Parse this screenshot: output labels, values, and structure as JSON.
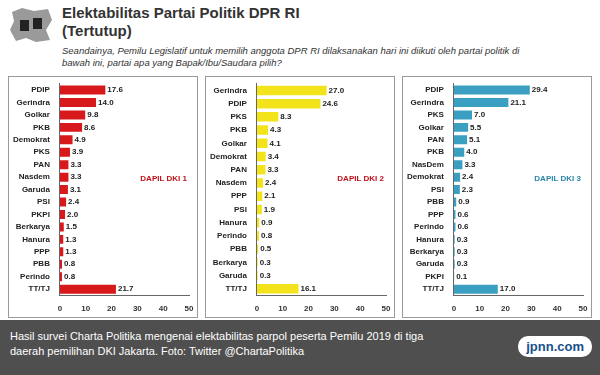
{
  "title": [
    "Elektabilitas Partai Politik DPR RI",
    "(Tertutup)"
  ],
  "question": "Seandainya, Pemilu Legislatif untuk memilih anggota DPR RI dilaksanakan hari ini diikuti oleh partai politik di bawah ini, partai apa yang Bapak/Ibu/Saudara pilih?",
  "caption": "Hasil survei Charta Politika mengenai elektabilitas parpol peserta Pemilu 2019 di tiga daerah pemilihan DKI Jakarta. Foto: Twitter @ChartaPolitika",
  "logo": "jpnn.com",
  "chart_data": [
    {
      "type": "bar",
      "orientation": "horizontal",
      "annotation": "DAPIL DKI 1",
      "color": "#d7191c",
      "categories": [
        "PDIP",
        "Gerindra",
        "Golkar",
        "PKB",
        "Demokrat",
        "PKS",
        "PAN",
        "Nasdem",
        "Garuda",
        "PSI",
        "PKPI",
        "Berkarya",
        "Hanura",
        "PPP",
        "PBB",
        "Perindo",
        "TT/TJ"
      ],
      "values": [
        17.6,
        14.0,
        9.8,
        8.6,
        4.9,
        3.9,
        3.3,
        3.3,
        3.1,
        2.4,
        2.0,
        1.5,
        1.3,
        1.3,
        0.8,
        0.8,
        21.7
      ],
      "value_labels": [
        "17.6",
        "14.0",
        "9.8",
        "8.6",
        "4.9",
        "3.9",
        "3.3",
        "3.3",
        "3.1",
        "2.4",
        "2.0",
        "1.5",
        "1.3",
        "1.3",
        "0.8",
        "0.8",
        "21.7"
      ],
      "data_labels": true,
      "grid": false,
      "xlim": [
        0,
        50
      ],
      "xticks": [
        0,
        10,
        20,
        30,
        40,
        50
      ]
    },
    {
      "type": "bar",
      "orientation": "horizontal",
      "annotation": "DAPIL DKI 2",
      "color": "#f2e31b",
      "categories": [
        "Gerindra",
        "PDIP",
        "PKS",
        "PKB",
        "Golkar",
        "Demokrat",
        "PAN",
        "Nasdem",
        "PPP",
        "PSI",
        "Hanura",
        "Perindo",
        "PBB",
        "Berkarya",
        "Garuda",
        "TT/TJ"
      ],
      "values": [
        27.0,
        24.6,
        8.3,
        4.3,
        4.1,
        3.4,
        3.3,
        2.4,
        2.1,
        1.9,
        0.9,
        0.8,
        0.5,
        0.3,
        0.3,
        16.1
      ],
      "value_labels": [
        "27.0",
        "24.6",
        "8.3",
        "4.3",
        "4.1",
        "3.4",
        "3.3",
        "2.4",
        "2.1",
        "1.9",
        "0.9",
        "0.8",
        "0.5",
        "0.3",
        "0.3",
        "16.1"
      ],
      "data_labels": true,
      "grid": false,
      "xlim": [
        0,
        50
      ],
      "xticks": [
        0,
        10,
        20,
        30,
        40,
        50
      ]
    },
    {
      "type": "bar",
      "orientation": "horizontal",
      "annotation": "DAPIL DKI 3",
      "color": "#3a9fc1",
      "categories": [
        "PDIP",
        "Gerindra",
        "PKS",
        "Golkar",
        "PAN",
        "PKB",
        "NasDem",
        "Demokrat",
        "PSI",
        "PBB",
        "PPP",
        "Perindo",
        "Hanura",
        "Berkarya",
        "Garuda",
        "PKPI",
        "TT/TJ"
      ],
      "values": [
        29.4,
        21.1,
        7.0,
        5.5,
        5.1,
        4.0,
        3.3,
        2.4,
        2.3,
        0.9,
        0.6,
        0.6,
        0.3,
        0.3,
        0.3,
        0.1,
        17.0
      ],
      "value_labels": [
        "29.4",
        "21.1",
        "7.0",
        "5.5",
        "5.1",
        "4.0",
        "3.3",
        "2.4",
        "2.3",
        "0.9",
        "0.6",
        "0.6",
        "0.3",
        "0.3",
        "0.3",
        "0.1",
        "17.0"
      ],
      "data_labels": true,
      "grid": false,
      "xlim": [
        0,
        50
      ],
      "xticks": [
        0,
        10,
        20,
        30,
        40,
        50
      ]
    }
  ]
}
